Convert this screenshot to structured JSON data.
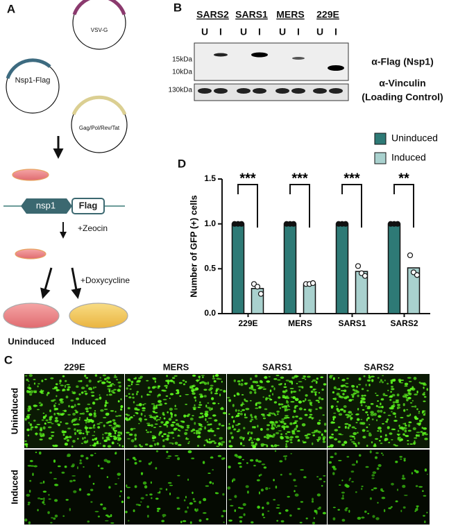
{
  "panel_a": {
    "label": "A",
    "plasmids": [
      "VSV-G",
      "Nsp1-Flag",
      "Gag/Pol/Rev/Tat"
    ],
    "gene": [
      "nsp1",
      "Flag"
    ],
    "steps": [
      "+Zeocin",
      "+Doxycycline"
    ],
    "outcomes": [
      "Uninduced",
      "Induced"
    ]
  },
  "panel_b": {
    "label": "B",
    "groups": [
      "SARS2",
      "SARS1",
      "MERS",
      "229E"
    ],
    "lanes": [
      "U",
      "I",
      "U",
      "I",
      "U",
      "I",
      "U",
      "I"
    ],
    "markers": [
      "15kDa",
      "10kDa",
      "130kDa"
    ],
    "antibodies": [
      "α-Flag (Nsp1)",
      "α-Vinculin",
      "(Loading Control)"
    ]
  },
  "chart_data": {
    "type": "bar",
    "panel_label": "D",
    "y_label": "Number of GFP (+) cells",
    "categories": [
      "229E",
      "MERS",
      "SARS1",
      "SARS2"
    ],
    "series": [
      {
        "name": "Uninduced",
        "color": "#2e7a76",
        "values": [
          1,
          1,
          1,
          1
        ],
        "points": [
          [
            1,
            1,
            1
          ],
          [
            1,
            1,
            1
          ],
          [
            1,
            1,
            1
          ],
          [
            1,
            1,
            1
          ]
        ]
      },
      {
        "name": "Induced",
        "color": "#a9d1ce",
        "values": [
          0.28,
          0.33,
          0.47,
          0.51
        ],
        "points": [
          [
            0.33,
            0.3,
            0.22
          ],
          [
            0.33,
            0.33,
            0.34
          ],
          [
            0.53,
            0.45,
            0.42
          ],
          [
            0.65,
            0.46,
            0.43
          ]
        ]
      }
    ],
    "annotations": [
      "***",
      "***",
      "***",
      "**"
    ],
    "ylim": [
      0,
      1.5
    ],
    "yticks": [
      {
        "value": 0,
        "label": "0.0"
      },
      0.5,
      {
        "value": 1,
        "label": "1.0"
      },
      1.5
    ],
    "legend": "top-right"
  },
  "panel_c": {
    "label": "C",
    "columns": [
      "229E",
      "MERS",
      "SARS1",
      "SARS2"
    ],
    "rows": [
      "Uninduced",
      "Induced"
    ]
  }
}
